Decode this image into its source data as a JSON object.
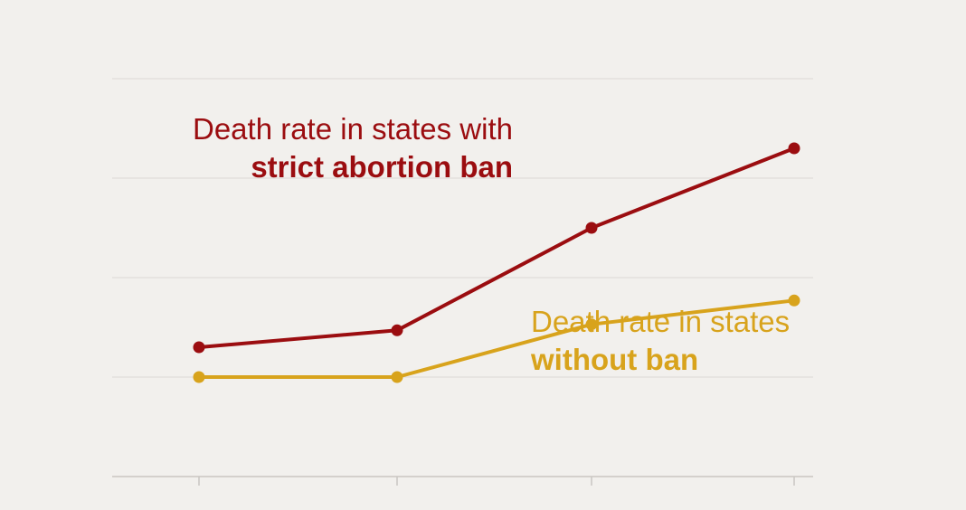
{
  "chart_data": {
    "type": "line",
    "x": [
      1,
      2,
      3,
      4
    ],
    "ylim": [
      0,
      4
    ],
    "grid": true,
    "gridlines": [
      1,
      2,
      3
    ],
    "series": [
      {
        "name": "Death rate in states with strict abortion ban",
        "label_line1": "Death rate in states with",
        "label_line2": "strict abortion ban",
        "color": "#9b0d10",
        "values": [
          1.3,
          1.47,
          2.5,
          3.3
        ]
      },
      {
        "name": "Death rate in states without ban",
        "label_line1": "Death rate in states",
        "label_line2": "without ban",
        "color": "#d8a31c",
        "values": [
          1.0,
          1.0,
          1.53,
          1.77
        ]
      }
    ]
  }
}
